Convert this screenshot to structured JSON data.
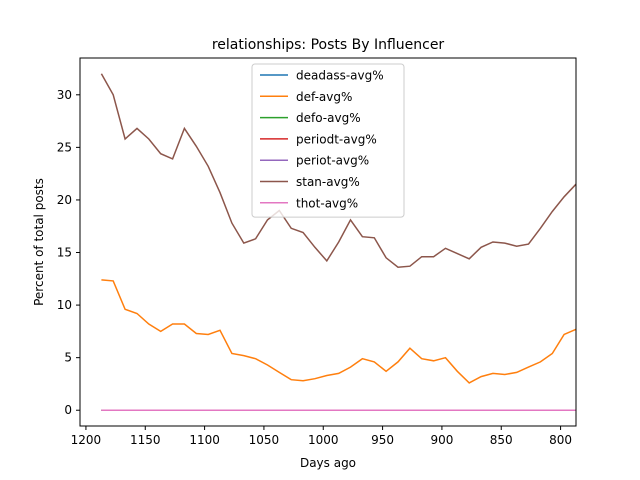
{
  "chart_data": {
    "type": "line",
    "title": "relationships: Posts By Influencer",
    "xlabel": "Days ago",
    "ylabel": "Percent of total posts",
    "xlim": [
      1205,
      787
    ],
    "ylim": [
      -1.5,
      33.5
    ],
    "x_inverted": true,
    "xticks": [
      1200,
      1150,
      1100,
      1050,
      1000,
      950,
      900,
      850,
      800
    ],
    "yticks": [
      0,
      5,
      10,
      15,
      20,
      25,
      30
    ],
    "grid": false,
    "legend_position": "upper center",
    "x": [
      1187,
      1177,
      1167,
      1157,
      1147,
      1137,
      1127,
      1117,
      1107,
      1097,
      1087,
      1077,
      1067,
      1057,
      1047,
      1037,
      1027,
      1017,
      1007,
      997,
      987,
      977,
      967,
      957,
      947,
      937,
      927,
      917,
      907,
      897,
      887,
      877,
      867,
      857,
      847,
      837,
      827,
      817,
      807,
      797,
      787
    ],
    "series": [
      {
        "name": "deadass-avg%",
        "color": "#1f77b4",
        "values": [
          0,
          0,
          0,
          0,
          0,
          0,
          0,
          0,
          0,
          0,
          0,
          0,
          0,
          0,
          0,
          0,
          0,
          0,
          0,
          0,
          0,
          0,
          0,
          0,
          0,
          0,
          0,
          0,
          0,
          0,
          0,
          0,
          0,
          0,
          0,
          0,
          0,
          0,
          0,
          0,
          0
        ]
      },
      {
        "name": "def-avg%",
        "color": "#ff7f0e",
        "values": [
          12.4,
          12.3,
          9.6,
          9.2,
          8.2,
          7.5,
          8.2,
          8.2,
          7.3,
          7.2,
          7.6,
          5.4,
          5.2,
          4.9,
          4.3,
          3.6,
          2.9,
          2.8,
          3.0,
          3.3,
          3.5,
          4.1,
          4.9,
          4.6,
          3.7,
          4.6,
          5.9,
          4.9,
          4.7,
          5.0,
          3.7,
          2.6,
          3.2,
          3.5,
          3.4,
          3.6,
          4.1,
          4.6,
          5.4,
          7.2,
          7.7
        ]
      },
      {
        "name": "defo-avg%",
        "color": "#2ca02c",
        "values": [
          0,
          0,
          0,
          0,
          0,
          0,
          0,
          0,
          0,
          0,
          0,
          0,
          0,
          0,
          0,
          0,
          0,
          0,
          0,
          0,
          0,
          0,
          0,
          0,
          0,
          0,
          0,
          0,
          0,
          0,
          0,
          0,
          0,
          0,
          0,
          0,
          0,
          0,
          0,
          0,
          0
        ]
      },
      {
        "name": "periodt-avg%",
        "color": "#d62728",
        "values": [
          0,
          0,
          0,
          0,
          0,
          0,
          0,
          0,
          0,
          0,
          0,
          0,
          0,
          0,
          0,
          0,
          0,
          0,
          0,
          0,
          0,
          0,
          0,
          0,
          0,
          0,
          0,
          0,
          0,
          0,
          0,
          0,
          0,
          0,
          0,
          0,
          0,
          0,
          0,
          0,
          0
        ]
      },
      {
        "name": "periot-avg%",
        "color": "#9467bd",
        "values": [
          0,
          0,
          0,
          0,
          0,
          0,
          0,
          0,
          0,
          0,
          0,
          0,
          0,
          0,
          0,
          0,
          0,
          0,
          0,
          0,
          0,
          0,
          0,
          0,
          0,
          0,
          0,
          0,
          0,
          0,
          0,
          0,
          0,
          0,
          0,
          0,
          0,
          0,
          0,
          0,
          0
        ]
      },
      {
        "name": "stan-avg%",
        "color": "#8c564b",
        "values": [
          32.0,
          30.0,
          25.8,
          26.8,
          25.8,
          24.4,
          23.9,
          26.8,
          25.1,
          23.2,
          20.7,
          17.8,
          15.9,
          16.3,
          18.1,
          19.0,
          17.3,
          16.9,
          15.5,
          14.2,
          16.0,
          18.1,
          16.5,
          16.4,
          14.5,
          13.6,
          13.7,
          14.6,
          14.6,
          15.4,
          14.9,
          14.4,
          15.5,
          16.0,
          15.9,
          15.6,
          15.8,
          17.3,
          18.9,
          20.3,
          21.5
        ]
      },
      {
        "name": "thot-avg%",
        "color": "#e377c2",
        "values": [
          0,
          0,
          0,
          0,
          0,
          0,
          0,
          0,
          0,
          0,
          0,
          0,
          0,
          0,
          0,
          0,
          0,
          0,
          0,
          0,
          0,
          0,
          0,
          0,
          0,
          0,
          0,
          0,
          0,
          0,
          0,
          0,
          0,
          0,
          0,
          0,
          0,
          0,
          0,
          0,
          0
        ]
      }
    ]
  }
}
